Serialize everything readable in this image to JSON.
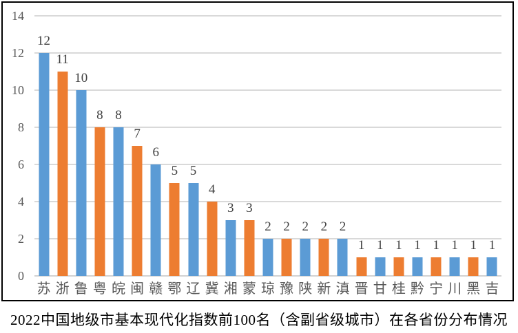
{
  "chart_data": {
    "type": "bar",
    "title": "2022中国地级市基本现代化指数前100名（含副省级城市）在各省份分布情况",
    "categories": [
      "苏",
      "浙",
      "鲁",
      "粤",
      "皖",
      "闽",
      "赣",
      "鄂",
      "辽",
      "冀",
      "湘",
      "蒙",
      "琼",
      "豫",
      "陕",
      "新",
      "滇",
      "晋",
      "甘",
      "桂",
      "黔",
      "宁",
      "川",
      "黑",
      "吉"
    ],
    "values": [
      12,
      11,
      10,
      8,
      8,
      7,
      6,
      5,
      5,
      4,
      3,
      3,
      2,
      2,
      2,
      2,
      2,
      1,
      1,
      1,
      1,
      1,
      1,
      1,
      1
    ],
    "xlabel": "",
    "ylabel": "",
    "ylim": [
      0,
      14
    ],
    "yticks": [
      0,
      2,
      4,
      6,
      8,
      10,
      12,
      14
    ],
    "grid": true,
    "legend": "none",
    "data_labels": true,
    "bar_color_pattern": "alternating",
    "bar_colors": [
      "#5B9BD5",
      "#ED7D31"
    ]
  },
  "colors": {
    "bar_blue": "#5B9BD5",
    "bar_orange": "#ED7D31",
    "gridline": "#D9D9D9",
    "axis_line": "#D2D2D2",
    "data_label": "#404040",
    "axis_label": "#595959",
    "title_text": "#000000",
    "frame_border": "#000000",
    "background": "#FFFFFF"
  }
}
